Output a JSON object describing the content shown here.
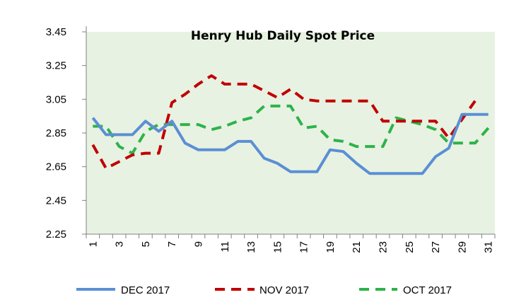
{
  "chart_data": {
    "type": "line",
    "title": "Henry Hub Daily Spot Price",
    "xlabel": "",
    "ylabel": "",
    "x": [
      1,
      2,
      3,
      4,
      5,
      6,
      7,
      8,
      9,
      10,
      11,
      12,
      13,
      14,
      15,
      16,
      17,
      18,
      19,
      20,
      21,
      22,
      23,
      24,
      25,
      26,
      27,
      28,
      29,
      30,
      31
    ],
    "x_tick_labels": [
      "1",
      "3",
      "5",
      "7",
      "9",
      "11",
      "13",
      "15",
      "17",
      "19",
      "21",
      "23",
      "25",
      "27",
      "29",
      "31"
    ],
    "y_ticks": [
      "2.25",
      "2.45",
      "2.65",
      "2.85",
      "3.05",
      "3.25",
      "3.45"
    ],
    "ylim": [
      2.25,
      3.45
    ],
    "grid": false,
    "legend_position": "bottom",
    "plot_background": "#e8f2e2",
    "series": [
      {
        "name": "DEC 2017",
        "color": "#5b8fd4",
        "style": "solid",
        "values": [
          2.94,
          2.84,
          2.84,
          2.84,
          2.92,
          2.86,
          2.92,
          2.79,
          2.75,
          2.75,
          2.75,
          2.8,
          2.8,
          2.7,
          2.67,
          2.62,
          2.62,
          2.62,
          2.75,
          2.74,
          2.67,
          2.61,
          2.61,
          2.61,
          2.61,
          2.61,
          2.71,
          2.76,
          2.96,
          2.96,
          2.96
        ]
      },
      {
        "name": "NOV 2017",
        "color": "#c00000",
        "style": "dash",
        "values": [
          2.78,
          2.64,
          2.68,
          2.72,
          2.73,
          2.73,
          3.03,
          3.08,
          3.14,
          3.19,
          3.14,
          3.14,
          3.14,
          3.1,
          3.06,
          3.11,
          3.05,
          3.04,
          3.04,
          3.04,
          3.04,
          3.04,
          2.92,
          2.92,
          2.92,
          2.92,
          2.92,
          2.82,
          2.93,
          3.04,
          null
        ]
      },
      {
        "name": "OCT 2017",
        "color": "#2db34a",
        "style": "dash",
        "values": [
          2.89,
          2.89,
          2.77,
          2.73,
          2.86,
          2.9,
          2.9,
          2.9,
          2.9,
          2.87,
          2.89,
          2.92,
          2.94,
          3.01,
          3.01,
          3.01,
          2.88,
          2.89,
          2.81,
          2.8,
          2.77,
          2.77,
          2.77,
          2.94,
          2.92,
          2.9,
          2.87,
          2.79,
          2.79,
          2.79,
          2.88
        ]
      }
    ]
  }
}
